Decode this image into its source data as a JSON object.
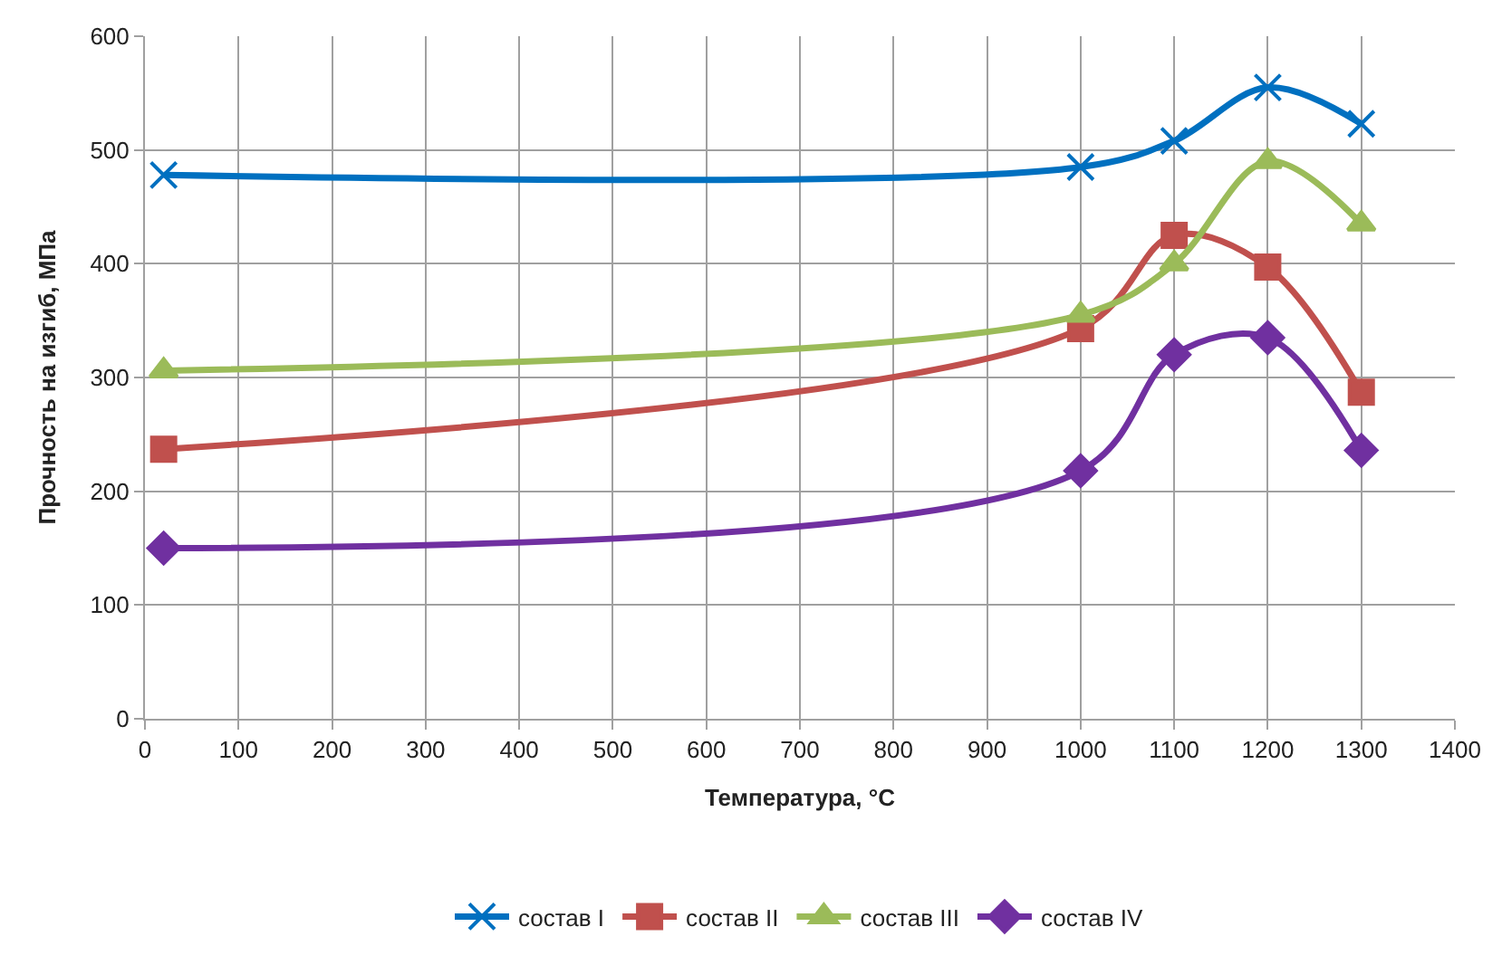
{
  "chart_data": {
    "type": "line",
    "xlabel": "Температура, °C",
    "ylabel": "Прочность на изгиб, МПа",
    "x": [
      20,
      1000,
      1100,
      1200,
      1300
    ],
    "series": [
      {
        "name": "состав I",
        "color": "#0070c0",
        "marker": "cross",
        "values": [
          478,
          485,
          508,
          555,
          523
        ]
      },
      {
        "name": "состав II",
        "color": "#c0504d",
        "marker": "square",
        "values": [
          237,
          343,
          425,
          397,
          287
        ]
      },
      {
        "name": "состав III",
        "color": "#9bbb59",
        "marker": "triangle",
        "values": [
          306,
          355,
          400,
          490,
          435
        ]
      },
      {
        "name": "состав IV",
        "color": "#7030a0",
        "marker": "diamond",
        "values": [
          150,
          218,
          320,
          335,
          236
        ]
      }
    ],
    "xlim": [
      0,
      1400
    ],
    "xticks": [
      0,
      100,
      200,
      300,
      400,
      500,
      600,
      700,
      800,
      900,
      1000,
      1100,
      1200,
      1300,
      1400
    ],
    "ylim": [
      0,
      600
    ],
    "yticks": [
      0,
      100,
      200,
      300,
      400,
      500,
      600
    ],
    "grid": true,
    "legend": "bottom",
    "line_style": "solid"
  }
}
